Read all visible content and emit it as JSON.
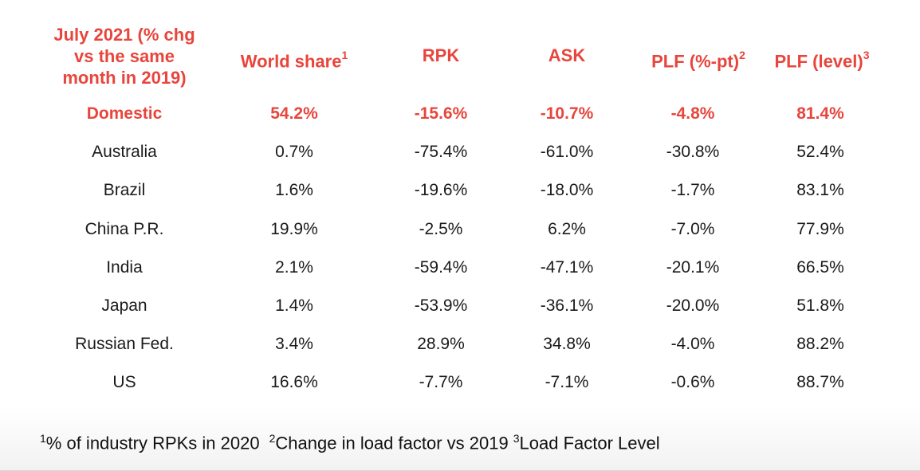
{
  "header": {
    "col0_line1": "July 2021 (% chg",
    "col0_line2": "vs the same",
    "col0_line3": "month in 2019)",
    "world_share": "World share",
    "world_share_sup": "1",
    "rpk": "RPK",
    "ask": "ASK",
    "plf_pt": "PLF (%-pt)",
    "plf_pt_sup": "2",
    "plf_level": "PLF (level)",
    "plf_level_sup": "3"
  },
  "rows": [
    {
      "name": "Domestic",
      "world_share": "54.2%",
      "rpk": "-15.6%",
      "ask": "-10.7%",
      "plf_pt": "-4.8%",
      "plf_level": "81.4%"
    },
    {
      "name": "Australia",
      "world_share": "0.7%",
      "rpk": "-75.4%",
      "ask": "-61.0%",
      "plf_pt": "-30.8%",
      "plf_level": "52.4%"
    },
    {
      "name": "Brazil",
      "world_share": "1.6%",
      "rpk": "-19.6%",
      "ask": "-18.0%",
      "plf_pt": "-1.7%",
      "plf_level": "83.1%"
    },
    {
      "name": "China P.R.",
      "world_share": "19.9%",
      "rpk": "-2.5%",
      "ask": "6.2%",
      "plf_pt": "-7.0%",
      "plf_level": "77.9%"
    },
    {
      "name": "India",
      "world_share": "2.1%",
      "rpk": "-59.4%",
      "ask": "-47.1%",
      "plf_pt": "-20.1%",
      "plf_level": "66.5%"
    },
    {
      "name": "Japan",
      "world_share": "1.4%",
      "rpk": "-53.9%",
      "ask": "-36.1%",
      "plf_pt": "-20.0%",
      "plf_level": "51.8%"
    },
    {
      "name": "Russian Fed.",
      "world_share": "3.4%",
      "rpk": "28.9%",
      "ask": "34.8%",
      "plf_pt": "-4.0%",
      "plf_level": "88.2%"
    },
    {
      "name": "US",
      "world_share": "16.6%",
      "rpk": "-7.7%",
      "ask": "-7.1%",
      "plf_pt": "-0.6%",
      "plf_level": "88.7%"
    }
  ],
  "footnotes": {
    "fn1_sup": "1",
    "fn1_text": "% of industry RPKs in 2020",
    "fn2_sup": "2",
    "fn2_text": "Change in load factor vs 2019",
    "fn3_sup": "3",
    "fn3_text": "Load Factor Level"
  },
  "colors": {
    "accent": "#e8453c",
    "text": "#1a1a1a"
  }
}
